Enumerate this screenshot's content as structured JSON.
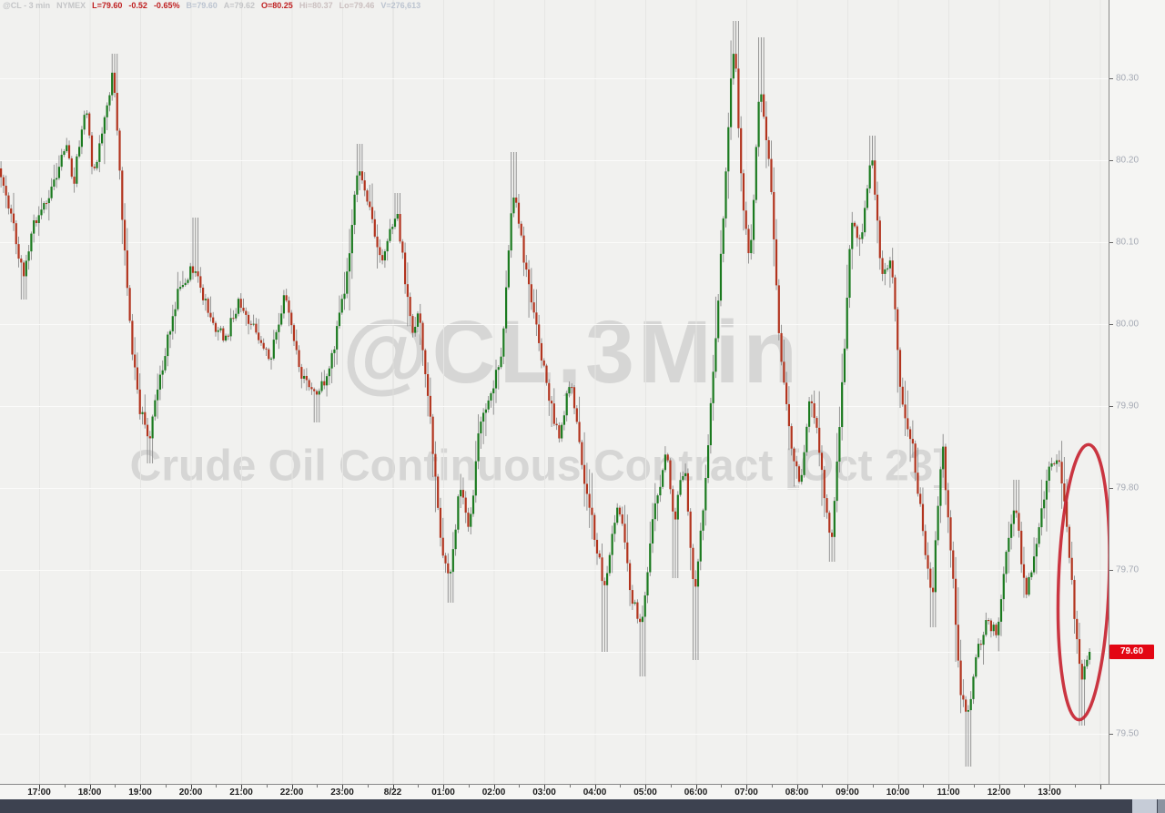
{
  "header": {
    "segments": [
      {
        "text": "@CL - 3 min",
        "color": "#c4c5c7"
      },
      {
        "text": "NYMEX",
        "color": "#c4c5c7"
      },
      {
        "text": "L=79.60",
        "color": "#bf2021"
      },
      {
        "text": "-0.52",
        "color": "#bf2021"
      },
      {
        "text": "-0.65%",
        "color": "#bf2021"
      },
      {
        "text": "B=79.60",
        "color": "#bcc4d0"
      },
      {
        "text": "A=79.62",
        "color": "#c4c5c7"
      },
      {
        "text": "O=80.25",
        "color": "#bf2021"
      },
      {
        "text": "Hi=80.37",
        "color": "#cabfbf"
      },
      {
        "text": "Lo=79.46",
        "color": "#cabfbf"
      },
      {
        "text": "V=276,613",
        "color": "#bcc4d0"
      }
    ]
  },
  "watermark": {
    "symbol_line": "@CL,3Min",
    "description_line": "Crude Oil Continuous Contract [Oct 23]"
  },
  "last_price": {
    "value": "79.60",
    "badge_color": "#e30613"
  },
  "axes": {
    "price_labels": [
      {
        "text": "80.30",
        "price": 80.3
      },
      {
        "text": "80.20",
        "price": 80.2
      },
      {
        "text": "80.10",
        "price": 80.1
      },
      {
        "text": "80.00",
        "price": 80.0
      },
      {
        "text": "79.90",
        "price": 79.9
      },
      {
        "text": "79.80",
        "price": 79.8
      },
      {
        "text": "79.70",
        "price": 79.7
      },
      {
        "text": "79.60",
        "price": 79.6
      },
      {
        "text": "79.50",
        "price": 79.5
      }
    ],
    "time_labels": [
      {
        "text": "17:00",
        "t": 0
      },
      {
        "text": "18:00",
        "t": 1
      },
      {
        "text": "19:00",
        "t": 2
      },
      {
        "text": "20:00",
        "t": 3
      },
      {
        "text": "21:00",
        "t": 4
      },
      {
        "text": "22:00",
        "t": 5
      },
      {
        "text": "23:00",
        "t": 6
      },
      {
        "text": "8/22",
        "t": 7
      },
      {
        "text": "01:00",
        "t": 8
      },
      {
        "text": "02:00",
        "t": 9
      },
      {
        "text": "03:00",
        "t": 10
      },
      {
        "text": "04:00",
        "t": 11
      },
      {
        "text": "05:00",
        "t": 12
      },
      {
        "text": "06:00",
        "t": 13
      },
      {
        "text": "07:00",
        "t": 14
      },
      {
        "text": "08:00",
        "t": 15
      },
      {
        "text": "09:00",
        "t": 16
      },
      {
        "text": "10:00",
        "t": 17
      },
      {
        "text": "11:00",
        "t": 18
      },
      {
        "text": "12:00",
        "t": 19
      },
      {
        "text": "13:00",
        "t": 20
      }
    ]
  },
  "chart_data": {
    "type": "candlestick",
    "symbol": "@CL",
    "interval": "3 min",
    "exchange": "NYMEX",
    "title": "@CL,3Min",
    "subtitle": "Crude Oil Continuous Contract [Oct 23]",
    "session": {
      "last": 79.6,
      "change": -0.52,
      "change_pct": "-0.65%",
      "bid": 79.6,
      "ask": 79.62,
      "open": 80.25,
      "high": 80.37,
      "low": 79.46,
      "volume": "276,613"
    },
    "ylim": [
      79.42,
      80.392
    ],
    "x_axis_note": "hours relative to 17:00; 7 = 8/22 00:00; grid every 0.10 price / 1 hour",
    "bar_minutes": 3,
    "up_color": "#1b7a1f",
    "down_color": "#b2341e",
    "wick_color": "#8a8a8a",
    "price_path": [
      [
        -0.78,
        80.19
      ],
      [
        -0.55,
        80.14
      ],
      [
        -0.3,
        80.06
      ],
      [
        -0.1,
        80.12
      ],
      [
        0.3,
        80.17
      ],
      [
        0.55,
        80.22
      ],
      [
        0.7,
        80.17
      ],
      [
        0.95,
        80.27
      ],
      [
        1.1,
        80.18
      ],
      [
        1.35,
        80.26
      ],
      [
        1.5,
        80.31
      ],
      [
        1.65,
        80.15
      ],
      [
        1.85,
        79.98
      ],
      [
        2.0,
        79.9
      ],
      [
        2.2,
        79.86
      ],
      [
        2.5,
        79.96
      ],
      [
        2.8,
        80.05
      ],
      [
        3.1,
        80.07
      ],
      [
        3.4,
        80.01
      ],
      [
        3.7,
        79.98
      ],
      [
        4.0,
        80.03
      ],
      [
        4.3,
        79.99
      ],
      [
        4.6,
        79.96
      ],
      [
        4.9,
        80.04
      ],
      [
        5.2,
        79.94
      ],
      [
        5.5,
        79.91
      ],
      [
        5.8,
        79.95
      ],
      [
        6.1,
        80.05
      ],
      [
        6.35,
        80.2
      ],
      [
        6.6,
        80.13
      ],
      [
        6.8,
        80.08
      ],
      [
        7.1,
        80.14
      ],
      [
        7.4,
        79.99
      ],
      [
        7.55,
        80.02
      ],
      [
        7.8,
        79.86
      ],
      [
        8.0,
        79.72
      ],
      [
        8.15,
        79.68
      ],
      [
        8.35,
        79.8
      ],
      [
        8.55,
        79.75
      ],
      [
        8.75,
        79.88
      ],
      [
        9.0,
        79.92
      ],
      [
        9.2,
        79.97
      ],
      [
        9.4,
        80.17
      ],
      [
        9.6,
        80.09
      ],
      [
        9.85,
        80.0
      ],
      [
        10.1,
        79.92
      ],
      [
        10.3,
        79.86
      ],
      [
        10.55,
        79.93
      ],
      [
        10.8,
        79.82
      ],
      [
        11.0,
        79.75
      ],
      [
        11.2,
        79.68
      ],
      [
        11.5,
        79.78
      ],
      [
        11.75,
        79.67
      ],
      [
        11.95,
        79.63
      ],
      [
        12.2,
        79.78
      ],
      [
        12.45,
        79.84
      ],
      [
        12.6,
        79.76
      ],
      [
        12.8,
        79.83
      ],
      [
        13.0,
        79.66
      ],
      [
        13.2,
        79.8
      ],
      [
        13.45,
        80.0
      ],
      [
        13.7,
        80.28
      ],
      [
        13.8,
        80.34
      ],
      [
        13.95,
        80.14
      ],
      [
        14.1,
        80.08
      ],
      [
        14.3,
        80.3
      ],
      [
        14.5,
        80.18
      ],
      [
        14.7,
        79.96
      ],
      [
        14.9,
        79.86
      ],
      [
        15.1,
        79.8
      ],
      [
        15.3,
        79.92
      ],
      [
        15.5,
        79.83
      ],
      [
        15.7,
        79.73
      ],
      [
        15.9,
        79.9
      ],
      [
        16.1,
        80.12
      ],
      [
        16.3,
        80.1
      ],
      [
        16.5,
        80.21
      ],
      [
        16.7,
        80.06
      ],
      [
        16.9,
        80.08
      ],
      [
        17.1,
        79.9
      ],
      [
        17.3,
        79.86
      ],
      [
        17.5,
        79.76
      ],
      [
        17.7,
        79.66
      ],
      [
        17.9,
        79.86
      ],
      [
        18.1,
        79.7
      ],
      [
        18.25,
        79.56
      ],
      [
        18.4,
        79.52
      ],
      [
        18.6,
        79.6
      ],
      [
        18.8,
        79.64
      ],
      [
        19.0,
        79.62
      ],
      [
        19.2,
        79.74
      ],
      [
        19.35,
        79.78
      ],
      [
        19.55,
        79.67
      ],
      [
        19.75,
        79.72
      ],
      [
        20.0,
        79.82
      ],
      [
        20.2,
        79.84
      ],
      [
        20.35,
        79.77
      ],
      [
        20.5,
        79.66
      ],
      [
        20.65,
        79.56
      ],
      [
        20.8,
        79.6
      ]
    ],
    "extremes": [
      {
        "t": -0.3,
        "low": 80.03
      },
      {
        "t": 1.5,
        "high": 80.33
      },
      {
        "t": 2.2,
        "low": 79.83
      },
      {
        "t": 3.1,
        "high": 80.13
      },
      {
        "t": 5.5,
        "low": 79.88
      },
      {
        "t": 6.35,
        "high": 80.22
      },
      {
        "t": 7.1,
        "high": 80.16
      },
      {
        "t": 8.15,
        "low": 79.66
      },
      {
        "t": 9.4,
        "high": 80.21
      },
      {
        "t": 11.2,
        "low": 79.6
      },
      {
        "t": 11.95,
        "low": 79.57
      },
      {
        "t": 12.6,
        "low": 79.69
      },
      {
        "t": 13.0,
        "low": 79.59
      },
      {
        "t": 13.8,
        "high": 80.37
      },
      {
        "t": 14.3,
        "high": 80.35
      },
      {
        "t": 15.7,
        "low": 79.71
      },
      {
        "t": 16.5,
        "high": 80.23
      },
      {
        "t": 17.7,
        "low": 79.63
      },
      {
        "t": 18.37,
        "low": 79.46
      },
      {
        "t": 19.35,
        "high": 79.81
      },
      {
        "t": 20.65,
        "low": 79.51
      }
    ],
    "annotations": [
      {
        "kind": "ellipse-highlight",
        "color": "#c5202e",
        "t_center": 20.68,
        "price_center": 79.685,
        "rx_hours": 0.5,
        "ry_price": 0.168,
        "rotate_deg": 2
      }
    ]
  }
}
